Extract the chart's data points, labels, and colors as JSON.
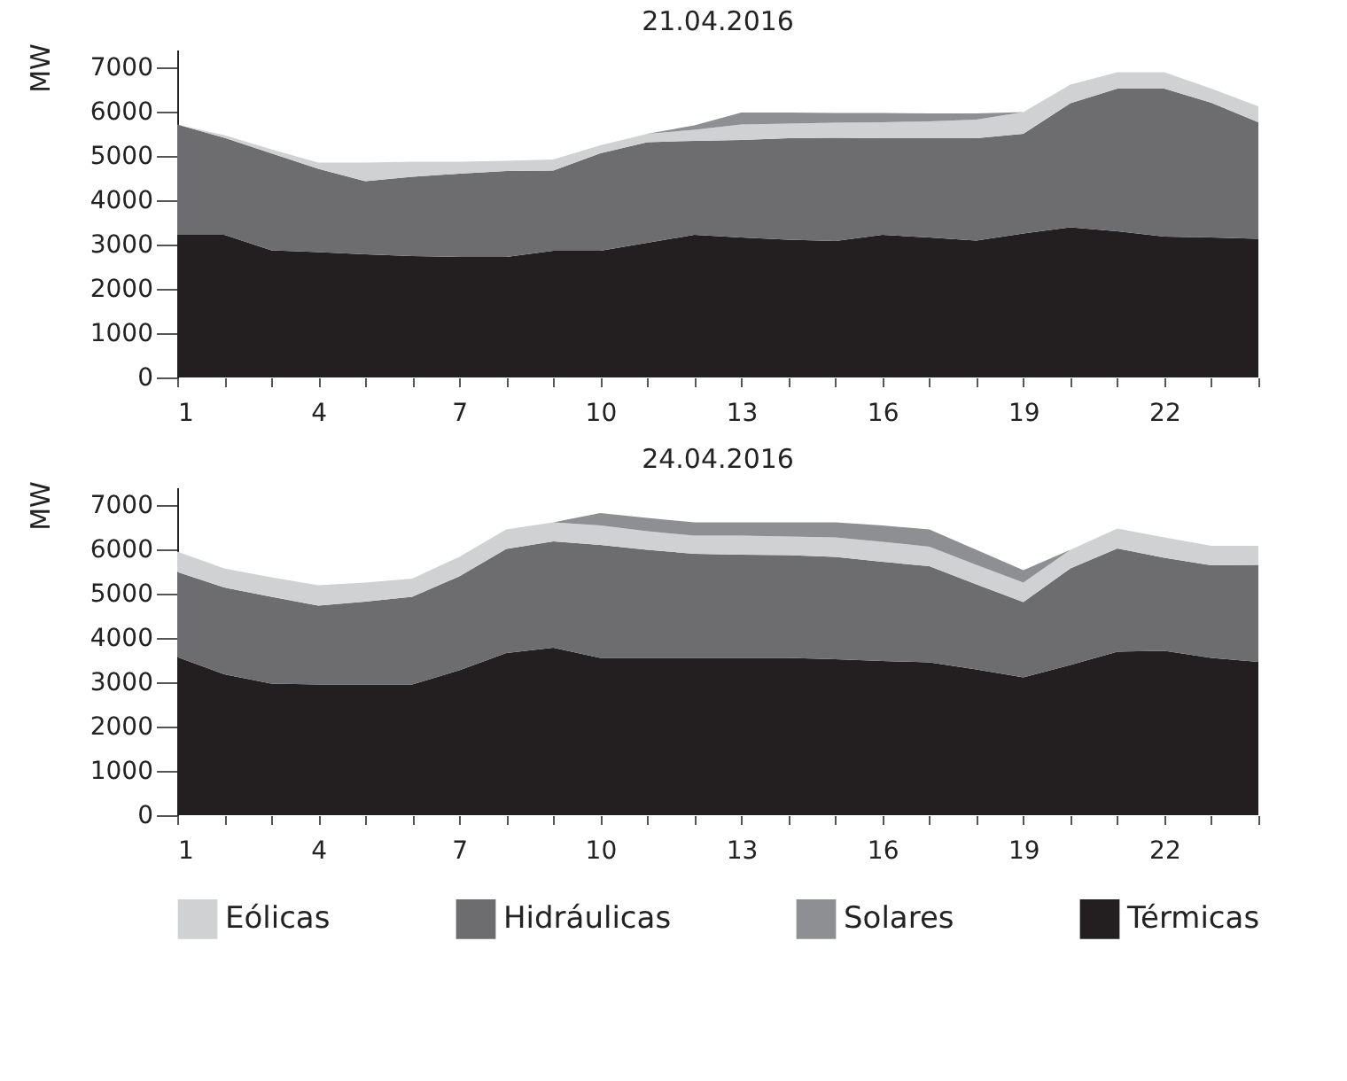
{
  "chart_data": [
    {
      "type": "area",
      "title": "21.04.2016",
      "ylabel": "MW",
      "stacked": true,
      "legend": "bottom",
      "xlim": [
        1,
        24
      ],
      "x": [
        1,
        2,
        3,
        4,
        5,
        6,
        7,
        8,
        9,
        10,
        11,
        12,
        13,
        14,
        15,
        16,
        17,
        18,
        19,
        20,
        21,
        22,
        23,
        24
      ],
      "xticks": [
        1,
        {
          "value": 2,
          "label": null
        },
        {
          "value": 3,
          "label": null
        },
        4,
        {
          "value": 5,
          "label": null
        },
        {
          "value": 6,
          "label": null
        },
        7,
        {
          "value": 8,
          "label": null
        },
        {
          "value": 9,
          "label": null
        },
        10,
        {
          "value": 11,
          "label": null
        },
        {
          "value": 12,
          "label": null
        },
        13,
        {
          "value": 14,
          "label": null
        },
        {
          "value": 15,
          "label": null
        },
        16,
        {
          "value": 17,
          "label": null
        },
        {
          "value": 18,
          "label": null
        },
        19,
        {
          "value": 20,
          "label": null
        },
        {
          "value": 21,
          "label": null
        },
        22,
        {
          "value": 23,
          "label": null
        },
        {
          "value": 24,
          "label": null
        }
      ],
      "ylim": [
        0,
        7400
      ],
      "yticks": [
        0,
        1000,
        2000,
        3000,
        4000,
        5000,
        6000,
        7000
      ],
      "grid": false,
      "series": [
        {
          "name": "Térmicas",
          "color": "#231f20",
          "values": [
            3220,
            3220,
            2870,
            2830,
            2780,
            2740,
            2720,
            2720,
            2860,
            2860,
            3040,
            3220,
            3160,
            3110,
            3080,
            3220,
            3160,
            3090,
            3250,
            3390,
            3300,
            3180,
            3160,
            3130
          ]
        },
        {
          "name": "Hidráulicas",
          "color": "#6d6d6f",
          "values": [
            2490,
            2190,
            2190,
            1880,
            1650,
            1790,
            1880,
            1940,
            1810,
            2200,
            2270,
            2120,
            2200,
            2290,
            2330,
            2180,
            2240,
            2310,
            2250,
            2800,
            3220,
            3340,
            3040,
            2630
          ]
        },
        {
          "name": "Eólicas",
          "color": "#d0d1d3",
          "values": [
            0,
            60,
            90,
            140,
            420,
            340,
            270,
            230,
            250,
            180,
            190,
            250,
            350,
            330,
            340,
            360,
            380,
            420,
            490,
            420,
            370,
            370,
            320,
            360
          ]
        },
        {
          "name": "Solares",
          "color": "#8e8f92",
          "values": [
            0,
            0,
            0,
            0,
            0,
            0,
            0,
            0,
            0,
            0,
            0,
            100,
            270,
            250,
            220,
            210,
            180,
            140,
            0,
            0,
            0,
            0,
            0,
            0
          ]
        }
      ]
    },
    {
      "type": "area",
      "title": "24.04.2016",
      "ylabel": "MW",
      "stacked": true,
      "legend": "bottom",
      "xlim": [
        1,
        24
      ],
      "x": [
        1,
        2,
        3,
        4,
        5,
        6,
        7,
        8,
        9,
        10,
        11,
        12,
        13,
        14,
        15,
        16,
        17,
        18,
        19,
        20,
        21,
        22,
        23,
        24
      ],
      "xticks": [
        1,
        {
          "value": 2,
          "label": null
        },
        {
          "value": 3,
          "label": null
        },
        4,
        {
          "value": 5,
          "label": null
        },
        {
          "value": 6,
          "label": null
        },
        7,
        {
          "value": 8,
          "label": null
        },
        {
          "value": 9,
          "label": null
        },
        10,
        {
          "value": 11,
          "label": null
        },
        {
          "value": 12,
          "label": null
        },
        13,
        {
          "value": 14,
          "label": null
        },
        {
          "value": 15,
          "label": null
        },
        16,
        {
          "value": 17,
          "label": null
        },
        {
          "value": 18,
          "label": null
        },
        19,
        {
          "value": 20,
          "label": null
        },
        {
          "value": 21,
          "label": null
        },
        22,
        {
          "value": 23,
          "label": null
        },
        {
          "value": 24,
          "label": null
        }
      ],
      "ylim": [
        0,
        7400
      ],
      "yticks": [
        0,
        1000,
        2000,
        3000,
        4000,
        5000,
        6000,
        7000
      ],
      "grid": false,
      "series": [
        {
          "name": "Térmicas",
          "color": "#231f20",
          "values": [
            3570,
            3180,
            2970,
            2950,
            2950,
            2950,
            3270,
            3660,
            3780,
            3550,
            3550,
            3550,
            3550,
            3550,
            3520,
            3480,
            3450,
            3290,
            3110,
            3390,
            3690,
            3710,
            3550,
            3460
          ]
        },
        {
          "name": "Hidráulicas",
          "color": "#6d6d6f",
          "values": [
            1920,
            1960,
            1960,
            1780,
            1870,
            1980,
            2120,
            2350,
            2400,
            2550,
            2440,
            2350,
            2330,
            2320,
            2310,
            2240,
            2170,
            1920,
            1700,
            2180,
            2330,
            2100,
            2090,
            2190
          ]
        },
        {
          "name": "Eólicas",
          "color": "#d0d1d3",
          "values": [
            460,
            430,
            440,
            460,
            430,
            410,
            440,
            440,
            430,
            440,
            420,
            410,
            430,
            420,
            440,
            450,
            440,
            440,
            440,
            420,
            450,
            460,
            440,
            430
          ]
        },
        {
          "name": "Solares",
          "color": "#8e8f92",
          "values": [
            0,
            0,
            0,
            0,
            0,
            0,
            0,
            0,
            0,
            280,
            300,
            300,
            300,
            320,
            340,
            370,
            390,
            340,
            280,
            0,
            0,
            0,
            0,
            0
          ]
        }
      ]
    }
  ]
}
